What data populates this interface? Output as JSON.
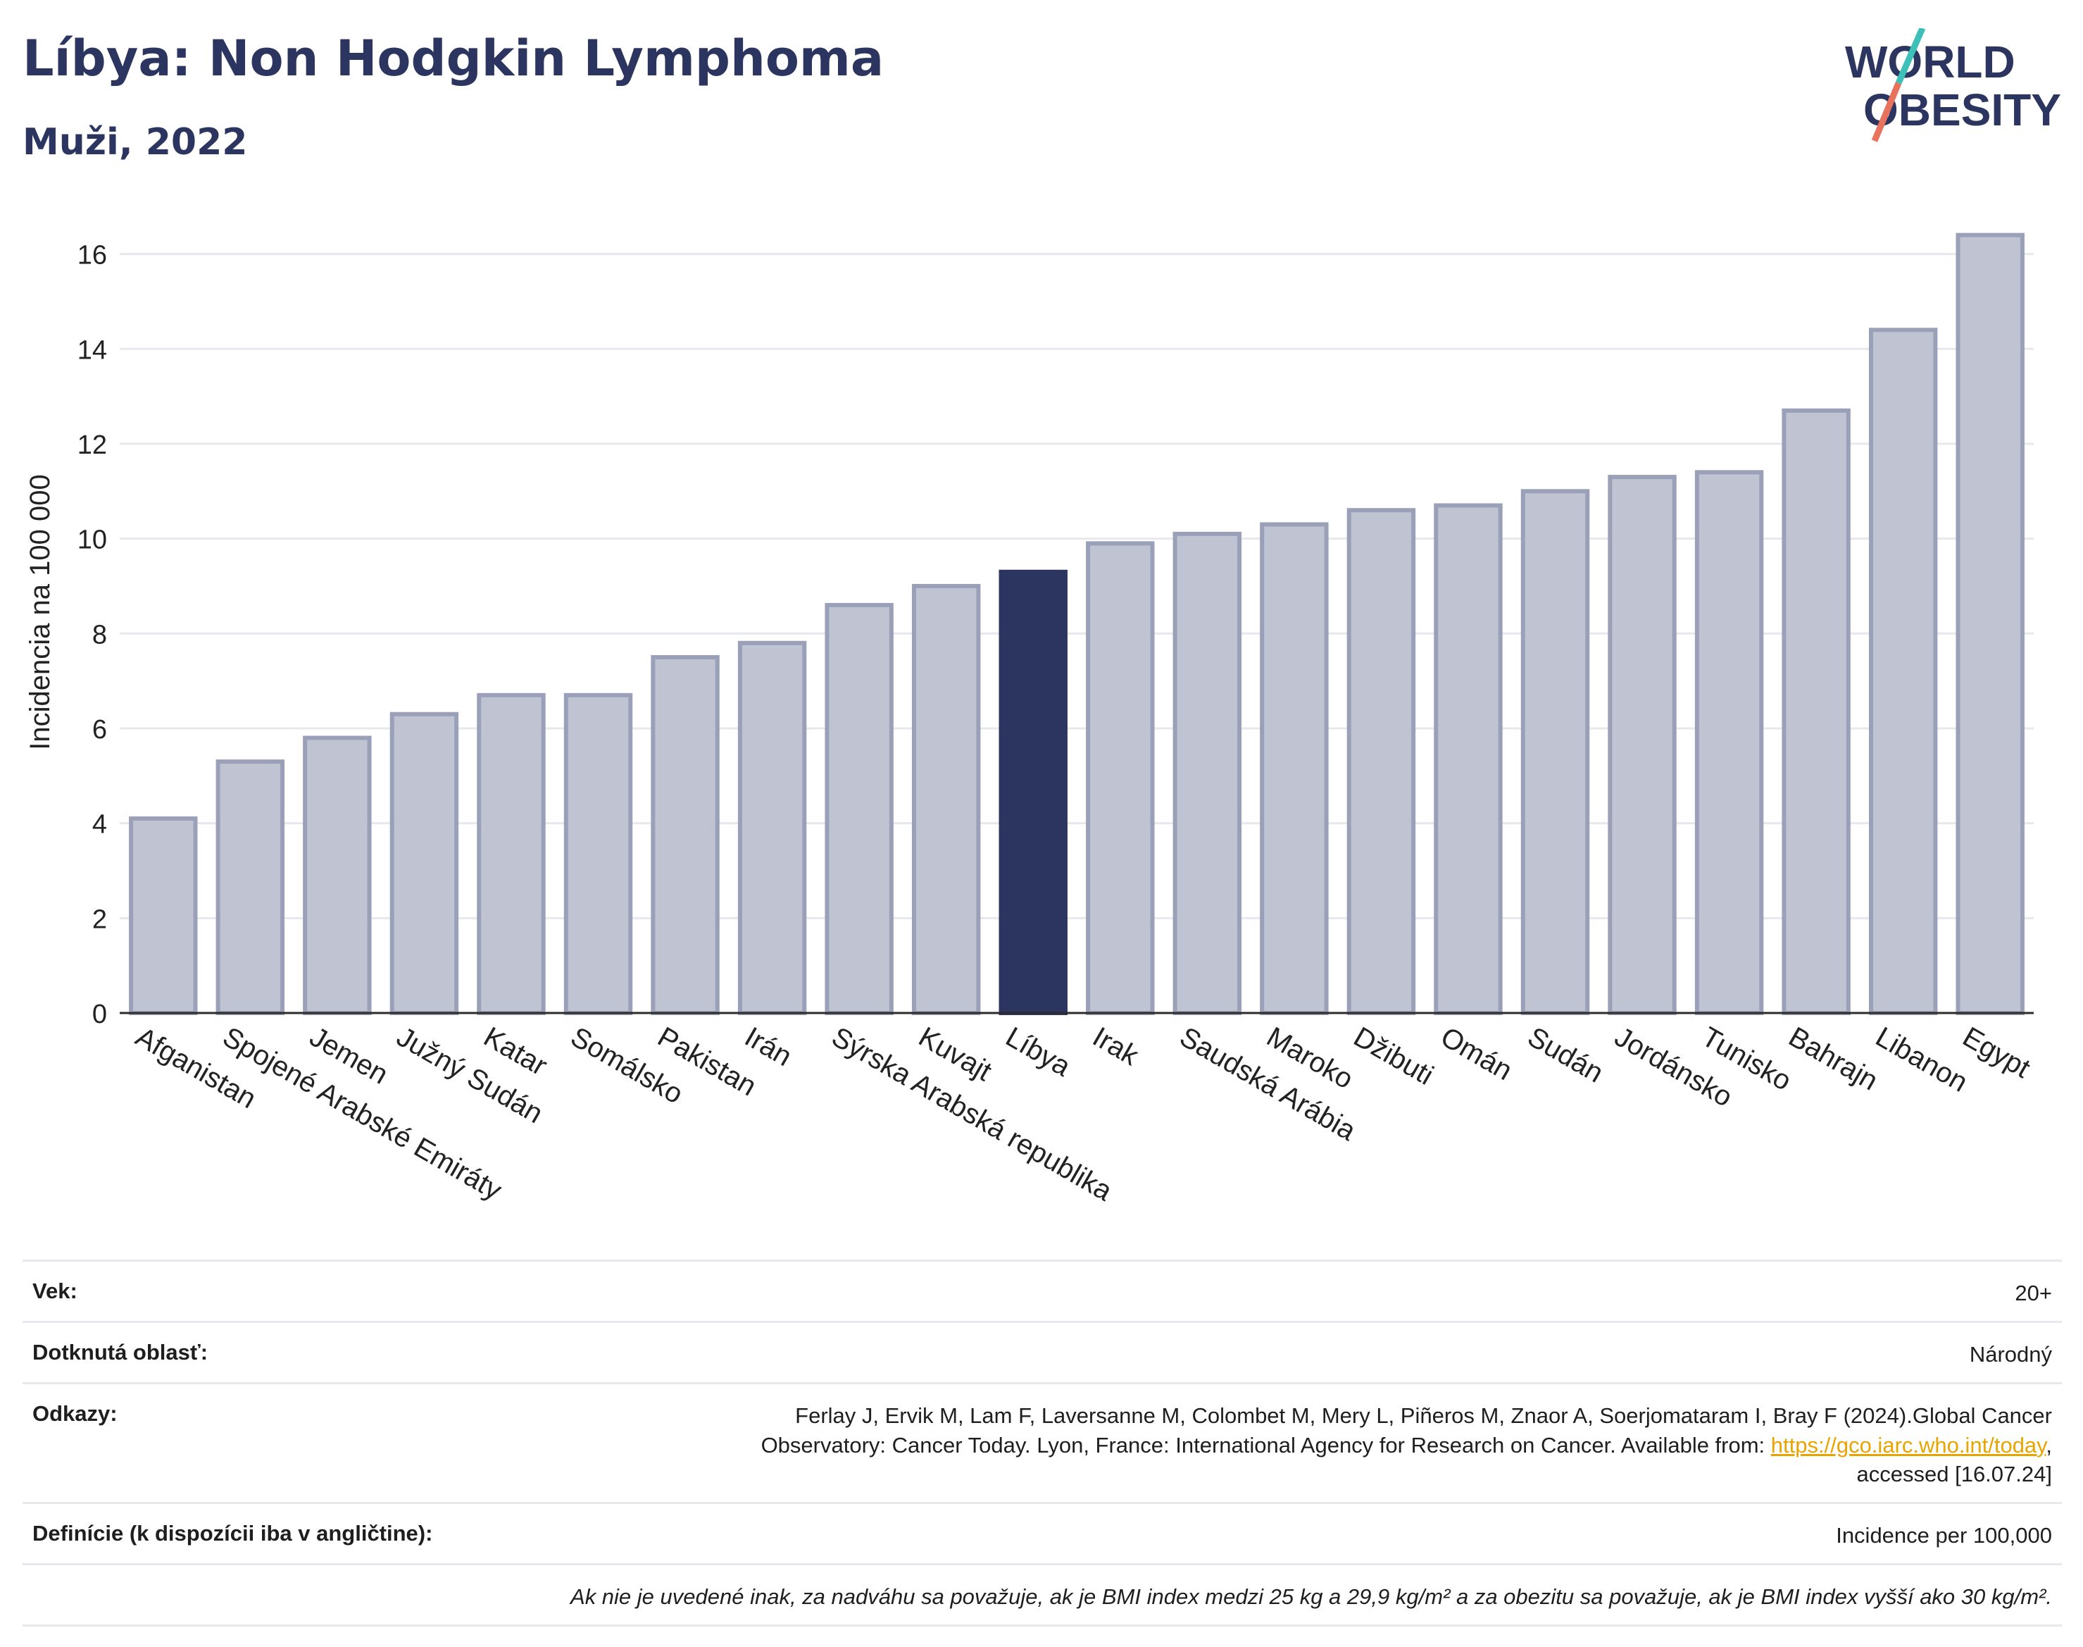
{
  "header": {
    "title": "Líbya: Non Hodgkin Lymphoma",
    "subtitle": "Muži, 2022",
    "logo_line1": "WORLD",
    "logo_line2": "OBESITY"
  },
  "colors": {
    "bar": "#c0c3d1",
    "bar_border": "#9aa0b8",
    "highlight": "#2b3560",
    "grid": "#e6e8ee",
    "logo_teal": "#3cc0b8",
    "logo_red": "#e8735c"
  },
  "chart_data": {
    "type": "bar",
    "title": "",
    "xlabel": "",
    "ylabel": "Incidencia na 100 000",
    "ylim": [
      0,
      16.9
    ],
    "yticks": [
      0,
      2,
      4,
      6,
      8,
      10,
      12,
      14,
      16
    ],
    "grid": true,
    "highlight_category": "Líbya",
    "categories": [
      "Afganistan",
      "Spojené Arabské Emiráty",
      "Jemen",
      "Južný Sudán",
      "Katar",
      "Somálsko",
      "Pakistan",
      "Irán",
      "Sýrska Arabská republika",
      "Kuvajt",
      "Líbya",
      "Irak",
      "Saudská Arábia",
      "Maroko",
      "Džibuti",
      "Omán",
      "Sudán",
      "Jordánsko",
      "Tunisko",
      "Bahrajn",
      "Libanon",
      "Egypt"
    ],
    "values": [
      4.1,
      5.3,
      5.8,
      6.3,
      6.7,
      6.7,
      7.5,
      7.8,
      8.6,
      9.0,
      9.3,
      9.9,
      10.1,
      10.3,
      10.6,
      10.7,
      11.0,
      11.3,
      11.4,
      12.7,
      14.4,
      16.4
    ]
  },
  "info": {
    "age_label": "Vek:",
    "age_value": "20+",
    "area_label": "Dotknutá oblasť:",
    "area_value": "Národný",
    "refs_label": "Odkazy:",
    "refs_text_1": "Ferlay J, Ervik M, Lam F, Laversanne M, Colombet M, Mery L, Piñeros M, Znaor A, Soerjomataram I, Bray F (2024).Global Cancer",
    "refs_text_2": "Observatory: Cancer Today. Lyon, France: International Agency for Research on Cancer. Available from: ",
    "refs_link": "https://gco.iarc.who.int/today",
    "refs_text_3": "accessed [16.07.24]",
    "def_label": "Definície (k dispozícii iba v angličtine):",
    "def_value": "Incidence per 100,000",
    "note": "Ak nie je uvedené inak, za nadváhu sa považuje, ak je BMI index medzi 25 kg a 29,9 kg/m² a za obezitu sa považuje, ak je BMI index vyšší ako 30 kg/m²."
  }
}
